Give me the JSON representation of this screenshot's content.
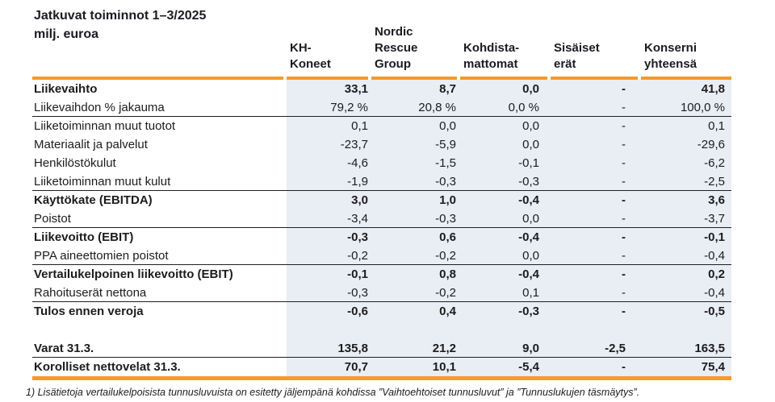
{
  "title": {
    "line1": "Jatkuvat toiminnot 1–3/2025",
    "line2": "milj. euroa"
  },
  "table": {
    "columns": [
      "KH-\nKoneet",
      "Nordic\nRescue\nGroup",
      "Kohdista-\nmattomat",
      "Sisäiset\nerät",
      "Konserni\nyhteensä"
    ],
    "column_keys": [
      "kh-koneet",
      "nordic-rescue-group",
      "kohdistamattomat",
      "sisaiset-erat",
      "konserni-yhteensa"
    ],
    "rows": [
      {
        "label": "Liikevaihto",
        "bold": true,
        "rule_below": false,
        "values": [
          "33,1",
          "8,7",
          "0,0",
          "-",
          "41,8"
        ]
      },
      {
        "label": "Liikevaihdon % jakauma",
        "bold": false,
        "rule_below": true,
        "values": [
          "79,2 %",
          "20,8 %",
          "0,0 %",
          "-",
          "100,0 %"
        ]
      },
      {
        "label": "Liiketoiminnan muut tuotot",
        "bold": false,
        "rule_below": false,
        "values": [
          "0,1",
          "0,0",
          "0,0",
          "-",
          "0,1"
        ]
      },
      {
        "label": "Materiaalit ja palvelut",
        "bold": false,
        "rule_below": false,
        "values": [
          "-23,7",
          "-5,9",
          "0,0",
          "-",
          "-29,6"
        ]
      },
      {
        "label": "Henkilöstökulut",
        "bold": false,
        "rule_below": false,
        "values": [
          "-4,6",
          "-1,5",
          "-0,1",
          "-",
          "-6,2"
        ]
      },
      {
        "label": "Liiketoiminnan muut kulut",
        "bold": false,
        "rule_below": true,
        "values": [
          "-1,9",
          "-0,3",
          "-0,3",
          "-",
          "-2,5"
        ]
      },
      {
        "label": "Käyttökate (EBITDA)",
        "bold": true,
        "rule_below": false,
        "values": [
          "3,0",
          "1,0",
          "-0,4",
          "-",
          "3,6"
        ]
      },
      {
        "label": "Poistot",
        "bold": false,
        "rule_below": true,
        "values": [
          "-3,4",
          "-0,3",
          "0,0",
          "-",
          "-3,7"
        ]
      },
      {
        "label": "Liikevoitto (EBIT)",
        "bold": true,
        "rule_below": false,
        "values": [
          "-0,3",
          "0,6",
          "-0,4",
          "-",
          "-0,1"
        ]
      },
      {
        "label": "PPA aineettomien poistot",
        "bold": false,
        "rule_below": true,
        "values": [
          "-0,2",
          "-0,2",
          "0,0",
          "-",
          "-0,4"
        ]
      },
      {
        "label": "Vertailukelpoinen liikevoitto (EBIT)",
        "bold": true,
        "rule_below": false,
        "values": [
          "-0,1",
          "0,8",
          "-0,4",
          "-",
          "0,2"
        ]
      },
      {
        "label": "Rahoituserät nettona",
        "bold": false,
        "rule_below": true,
        "values": [
          "-0,3",
          "-0,2",
          "0,1",
          "-",
          "-0,4"
        ]
      },
      {
        "label": "Tulos ennen veroja",
        "bold": true,
        "rule_below": false,
        "values": [
          "-0,6",
          "0,4",
          "-0,3",
          "-",
          "-0,5"
        ]
      },
      {
        "label": "",
        "bold": false,
        "rule_below": false,
        "spacer": true,
        "values": [
          "",
          "",
          "",
          "",
          ""
        ]
      },
      {
        "label": "Varat 31.3.",
        "bold": true,
        "rule_below": true,
        "values": [
          "135,8",
          "21,2",
          "9,0",
          "-2,5",
          "163,5"
        ]
      },
      {
        "label": "Korolliset nettovelat 31.3.",
        "bold": true,
        "rule_below": false,
        "values": [
          "70,7",
          "10,1",
          "-5,4",
          "-",
          "75,4"
        ]
      }
    ]
  },
  "footnote": "1) Lisätietoja vertailukelpoisista tunnusluvuista on esitetty jäljempänä kohdissa ”Vaihtoehtoiset tunnusluvut” ja ”Tunnuslukujen täsmäytys”.",
  "colors": {
    "accent_orange": "#f49b29",
    "column_shade_blue": "#e9edf4",
    "rule_black": "#1f1f1f",
    "text": "#1c1c1e"
  }
}
